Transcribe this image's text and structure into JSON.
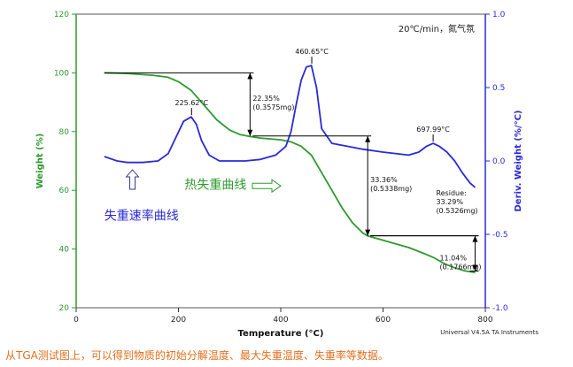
{
  "caption": "从TGA测试图上，可以得到物质的初始分解温度、最大失重温度、失重率等数据。",
  "chart_data": {
    "type": "line",
    "xlabel": "Temperature (°C)",
    "ylabel_left": "Weight (%)",
    "ylabel_right": "Deriv. Weight (%/°C)",
    "xlim": [
      0,
      800
    ],
    "ylim_left": [
      20,
      120
    ],
    "ylim_right": [
      -1.0,
      1.0
    ],
    "x_ticks": [
      "0",
      "200",
      "400",
      "600",
      "800"
    ],
    "y_left_ticks": [
      "20",
      "40",
      "60",
      "80",
      "100",
      "120"
    ],
    "y_right_ticks": [
      "-1.0",
      "-0.5",
      "0.0",
      "0.5",
      "1.0"
    ],
    "condition_label": "20℃/min，氮气氛",
    "footer_label": "Universal V4.5A TA Instruments",
    "grid": false,
    "colors": {
      "weight": "#2e9a2e",
      "deriv": "#2a2ad8",
      "axis_left": "#2e9a2e",
      "axis_right": "#2a2ad8",
      "annotation": "#000000"
    },
    "series": [
      {
        "axis": "left",
        "color": "#2e9a2e",
        "x": [
          55,
          100,
          150,
          180,
          200,
          225,
          250,
          275,
          300,
          320,
          340,
          360,
          380,
          400,
          420,
          440,
          460,
          480,
          500,
          520,
          540,
          560,
          570,
          590,
          620,
          650,
          680,
          700,
          720,
          740,
          760,
          770,
          780
        ],
        "y": [
          100,
          99.8,
          99.2,
          98.5,
          97,
          94,
          89,
          84,
          80.5,
          79,
          78.3,
          77.8,
          77.5,
          77.2,
          76.5,
          75,
          72,
          66,
          60,
          54,
          49,
          45.5,
          44.5,
          43.5,
          42,
          40.5,
          38.5,
          37,
          35,
          33.6,
          32.6,
          32.3,
          32
        ]
      },
      {
        "axis": "right",
        "color": "#2a2ad8",
        "x": [
          55,
          80,
          100,
          130,
          160,
          180,
          195,
          210,
          225,
          235,
          245,
          260,
          280,
          300,
          330,
          360,
          390,
          410,
          420,
          430,
          440,
          450,
          460,
          470,
          480,
          500,
          530,
          560,
          600,
          650,
          670,
          685,
          698,
          710,
          725,
          740,
          755,
          770,
          780
        ],
        "y": [
          0.03,
          0.0,
          -0.01,
          -0.01,
          0.0,
          0.05,
          0.16,
          0.27,
          0.3,
          0.25,
          0.14,
          0.04,
          0.0,
          0.0,
          0.0,
          0.01,
          0.04,
          0.1,
          0.2,
          0.38,
          0.55,
          0.64,
          0.65,
          0.5,
          0.22,
          0.12,
          0.1,
          0.08,
          0.06,
          0.04,
          0.06,
          0.1,
          0.12,
          0.1,
          0.06,
          0.0,
          -0.08,
          -0.15,
          -0.18
        ]
      }
    ],
    "annotations": {
      "peaks": [
        {
          "x": 225.62,
          "y_right": 0.3,
          "label": "225.62°C"
        },
        {
          "x": 460.65,
          "y_right": 0.65,
          "label": "460.65°C"
        },
        {
          "x": 697.99,
          "y_right": 0.12,
          "label": "697.99°C"
        }
      ],
      "steps": [
        {
          "x": 340,
          "y_from": 100,
          "y_to": 78.5,
          "h_from_x": 55,
          "lines": [
            "22.35%",
            "(0.3575mg)"
          ]
        },
        {
          "x": 570,
          "y_from": 78.5,
          "y_to": 44.5,
          "h_from_x": 345,
          "lines": [
            "33.36%",
            "(0.5338mg)"
          ]
        },
        {
          "x": 780,
          "y_from": 44.5,
          "y_to": 32.5,
          "h_from_x": 575,
          "lines": [
            "11.04%",
            "(0.1766mg)"
          ]
        }
      ],
      "residue": {
        "x": 780,
        "y": 32.5,
        "lines": [
          "Residue:",
          "33.29%",
          "(0.5326mg)"
        ]
      },
      "weight_curve_label": "热失重曲线",
      "deriv_curve_label": "失重速率曲线"
    }
  }
}
